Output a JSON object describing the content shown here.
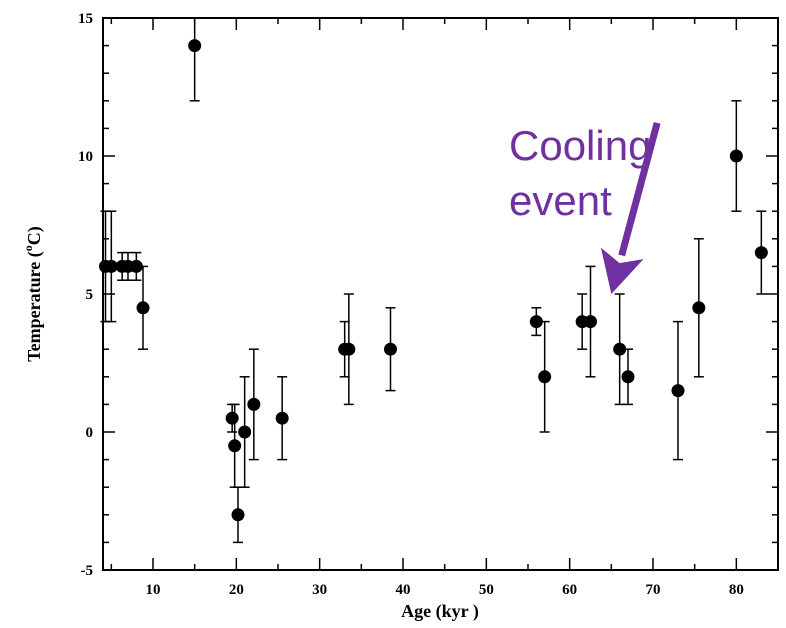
{
  "chart_data": {
    "type": "scatter",
    "title": "",
    "xlabel": "Age (kyr )",
    "ylabel_text": "Temperature (",
    "ylabel_sup": "o",
    "ylabel_unit": "C)",
    "xlim": [
      4,
      85
    ],
    "ylim": [
      -5,
      15
    ],
    "xticks": [
      10,
      20,
      30,
      40,
      50,
      60,
      70,
      80
    ],
    "yticks": [
      -5,
      0,
      5,
      10,
      15
    ],
    "xtick_labels": [
      "10",
      "20",
      "30",
      "40",
      "50",
      "60",
      "70",
      "80"
    ],
    "ytick_labels": [
      "-5",
      "0",
      "5",
      "10",
      "15"
    ],
    "grid": false,
    "legend": "none",
    "point_color": "#000000",
    "annotation": {
      "lines": [
        "Cooling",
        "event"
      ],
      "color": "#7030a0",
      "arrow_from": [
        70.5,
        11.2
      ],
      "arrow_to": [
        65.0,
        5.0
      ]
    },
    "points": [
      {
        "x": 4.3,
        "y": 6.0,
        "lo": 4.0,
        "hi": 8.0
      },
      {
        "x": 5.0,
        "y": 6.0,
        "lo": 4.0,
        "hi": 8.0
      },
      {
        "x": 6.3,
        "y": 6.0,
        "lo": 5.5,
        "hi": 6.5
      },
      {
        "x": 7.0,
        "y": 6.0,
        "lo": 5.5,
        "hi": 6.5
      },
      {
        "x": 8.0,
        "y": 6.0,
        "lo": 5.5,
        "hi": 6.5
      },
      {
        "x": 8.8,
        "y": 4.5,
        "lo": 3.0,
        "hi": 6.0
      },
      {
        "x": 15.0,
        "y": 14.0,
        "lo": 12.0,
        "hi": 15.0
      },
      {
        "x": 19.5,
        "y": 0.5,
        "lo": 0.0,
        "hi": 1.0
      },
      {
        "x": 19.8,
        "y": -0.5,
        "lo": -2.0,
        "hi": 1.0
      },
      {
        "x": 20.2,
        "y": -3.0,
        "lo": -4.0,
        "hi": -2.0
      },
      {
        "x": 21.0,
        "y": 0.0,
        "lo": -2.0,
        "hi": 2.0
      },
      {
        "x": 22.1,
        "y": 1.0,
        "lo": -1.0,
        "hi": 3.0
      },
      {
        "x": 25.5,
        "y": 0.5,
        "lo": -1.0,
        "hi": 2.0
      },
      {
        "x": 33.0,
        "y": 3.0,
        "lo": 2.0,
        "hi": 4.0
      },
      {
        "x": 33.5,
        "y": 3.0,
        "lo": 1.0,
        "hi": 5.0
      },
      {
        "x": 38.5,
        "y": 3.0,
        "lo": 1.5,
        "hi": 4.5
      },
      {
        "x": 56.0,
        "y": 4.0,
        "lo": 3.5,
        "hi": 4.5
      },
      {
        "x": 57.0,
        "y": 2.0,
        "lo": 0.0,
        "hi": 4.0
      },
      {
        "x": 61.5,
        "y": 4.0,
        "lo": 3.0,
        "hi": 5.0
      },
      {
        "x": 62.5,
        "y": 4.0,
        "lo": 2.0,
        "hi": 6.0
      },
      {
        "x": 66.0,
        "y": 3.0,
        "lo": 1.0,
        "hi": 5.0
      },
      {
        "x": 67.0,
        "y": 2.0,
        "lo": 1.0,
        "hi": 3.0
      },
      {
        "x": 73.0,
        "y": 1.5,
        "lo": -1.0,
        "hi": 4.0
      },
      {
        "x": 75.5,
        "y": 4.5,
        "lo": 2.0,
        "hi": 7.0
      },
      {
        "x": 80.0,
        "y": 10.0,
        "lo": 8.0,
        "hi": 12.0
      },
      {
        "x": 83.0,
        "y": 6.5,
        "lo": 5.0,
        "hi": 8.0
      }
    ]
  }
}
